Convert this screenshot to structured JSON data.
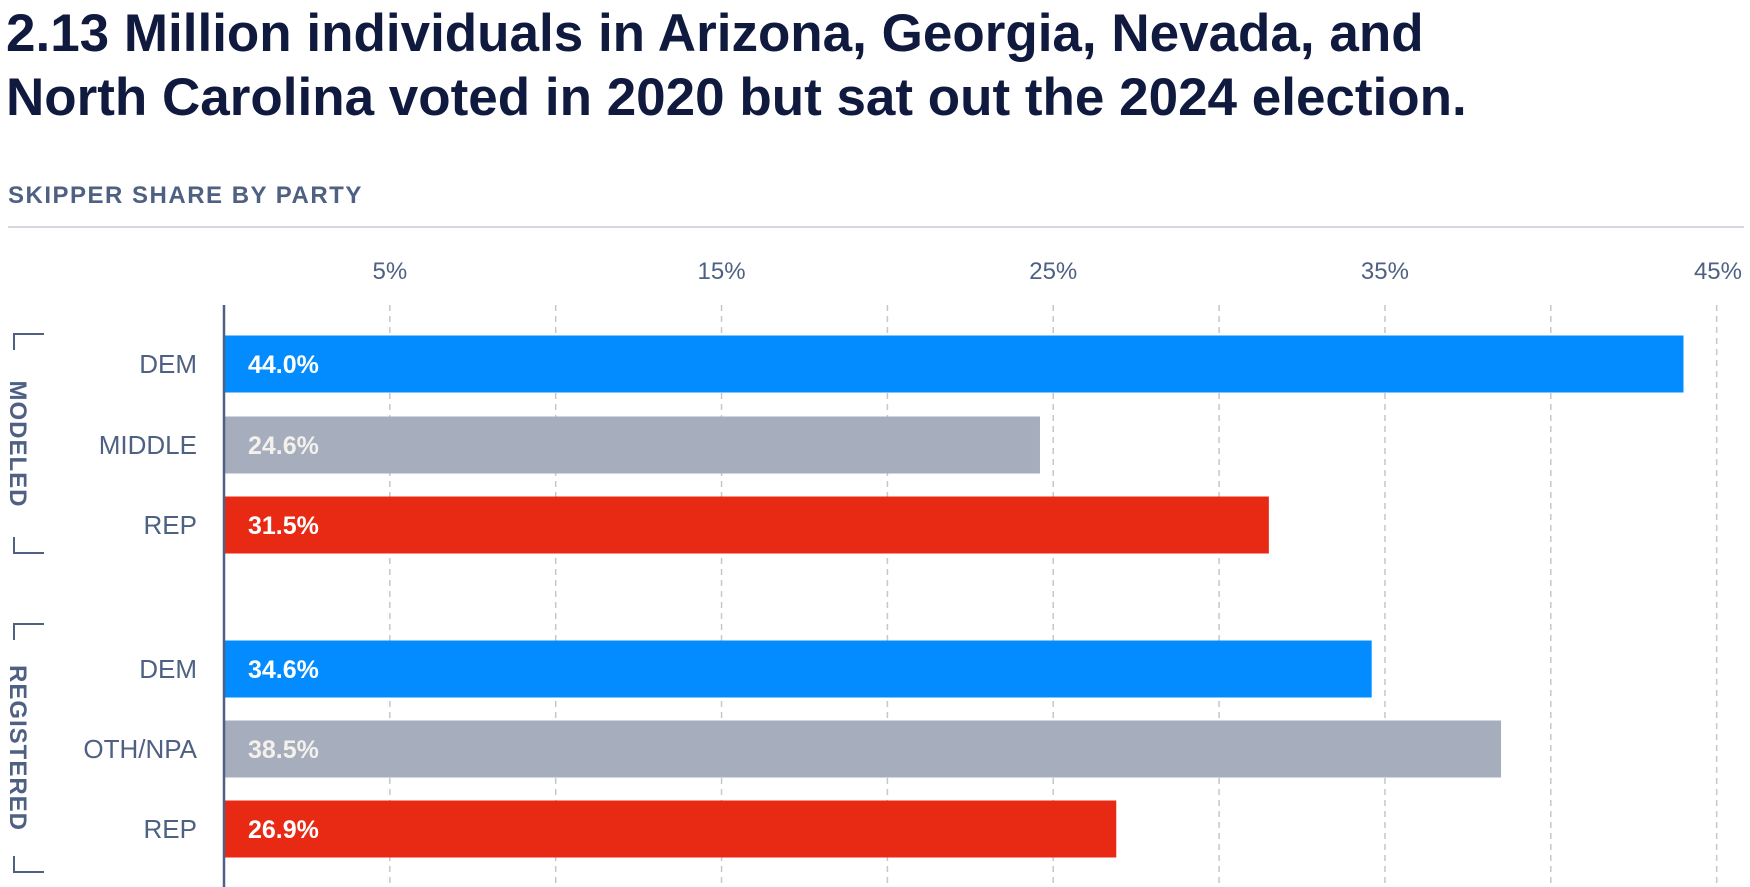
{
  "header": {
    "title_line1": "2.13 Million individuals in Arizona, Georgia, Nevada, and",
    "title_line2": "North Carolina voted in 2020 but sat out the 2024 election.",
    "subtitle": "SKIPPER SHARE BY PARTY"
  },
  "colors": {
    "dem": "#038cff",
    "middle": "#a6adbd",
    "rep": "#e82a15",
    "axis_text": "#4f6183",
    "title_text": "#101a3f",
    "grid": "#c3c7ce"
  },
  "chart_data": {
    "type": "bar",
    "orientation": "horizontal",
    "title": "SKIPPER SHARE BY PARTY",
    "xlim": [
      0,
      45
    ],
    "ticks": [
      5,
      15,
      25,
      35,
      45
    ],
    "tick_labels": [
      "5%",
      "15%",
      "25%",
      "35%",
      "45%"
    ],
    "gridlines": [
      5,
      10,
      15,
      20,
      25,
      30,
      35,
      40,
      45
    ],
    "groups": [
      {
        "name": "MODELED",
        "bars": [
          {
            "category": "DEM",
            "value": 44.0,
            "label": "44.0%",
            "color_key": "dem"
          },
          {
            "category": "MIDDLE",
            "value": 24.6,
            "label": "24.6%",
            "color_key": "middle"
          },
          {
            "category": "REP",
            "value": 31.5,
            "label": "31.5%",
            "color_key": "rep"
          }
        ]
      },
      {
        "name": "REGISTERED",
        "bars": [
          {
            "category": "DEM",
            "value": 34.6,
            "label": "34.6%",
            "color_key": "dem"
          },
          {
            "category": "OTH/NPA",
            "value": 38.5,
            "label": "38.5%",
            "color_key": "middle"
          },
          {
            "category": "REP",
            "value": 26.9,
            "label": "26.9%",
            "color_key": "rep"
          }
        ]
      }
    ]
  }
}
